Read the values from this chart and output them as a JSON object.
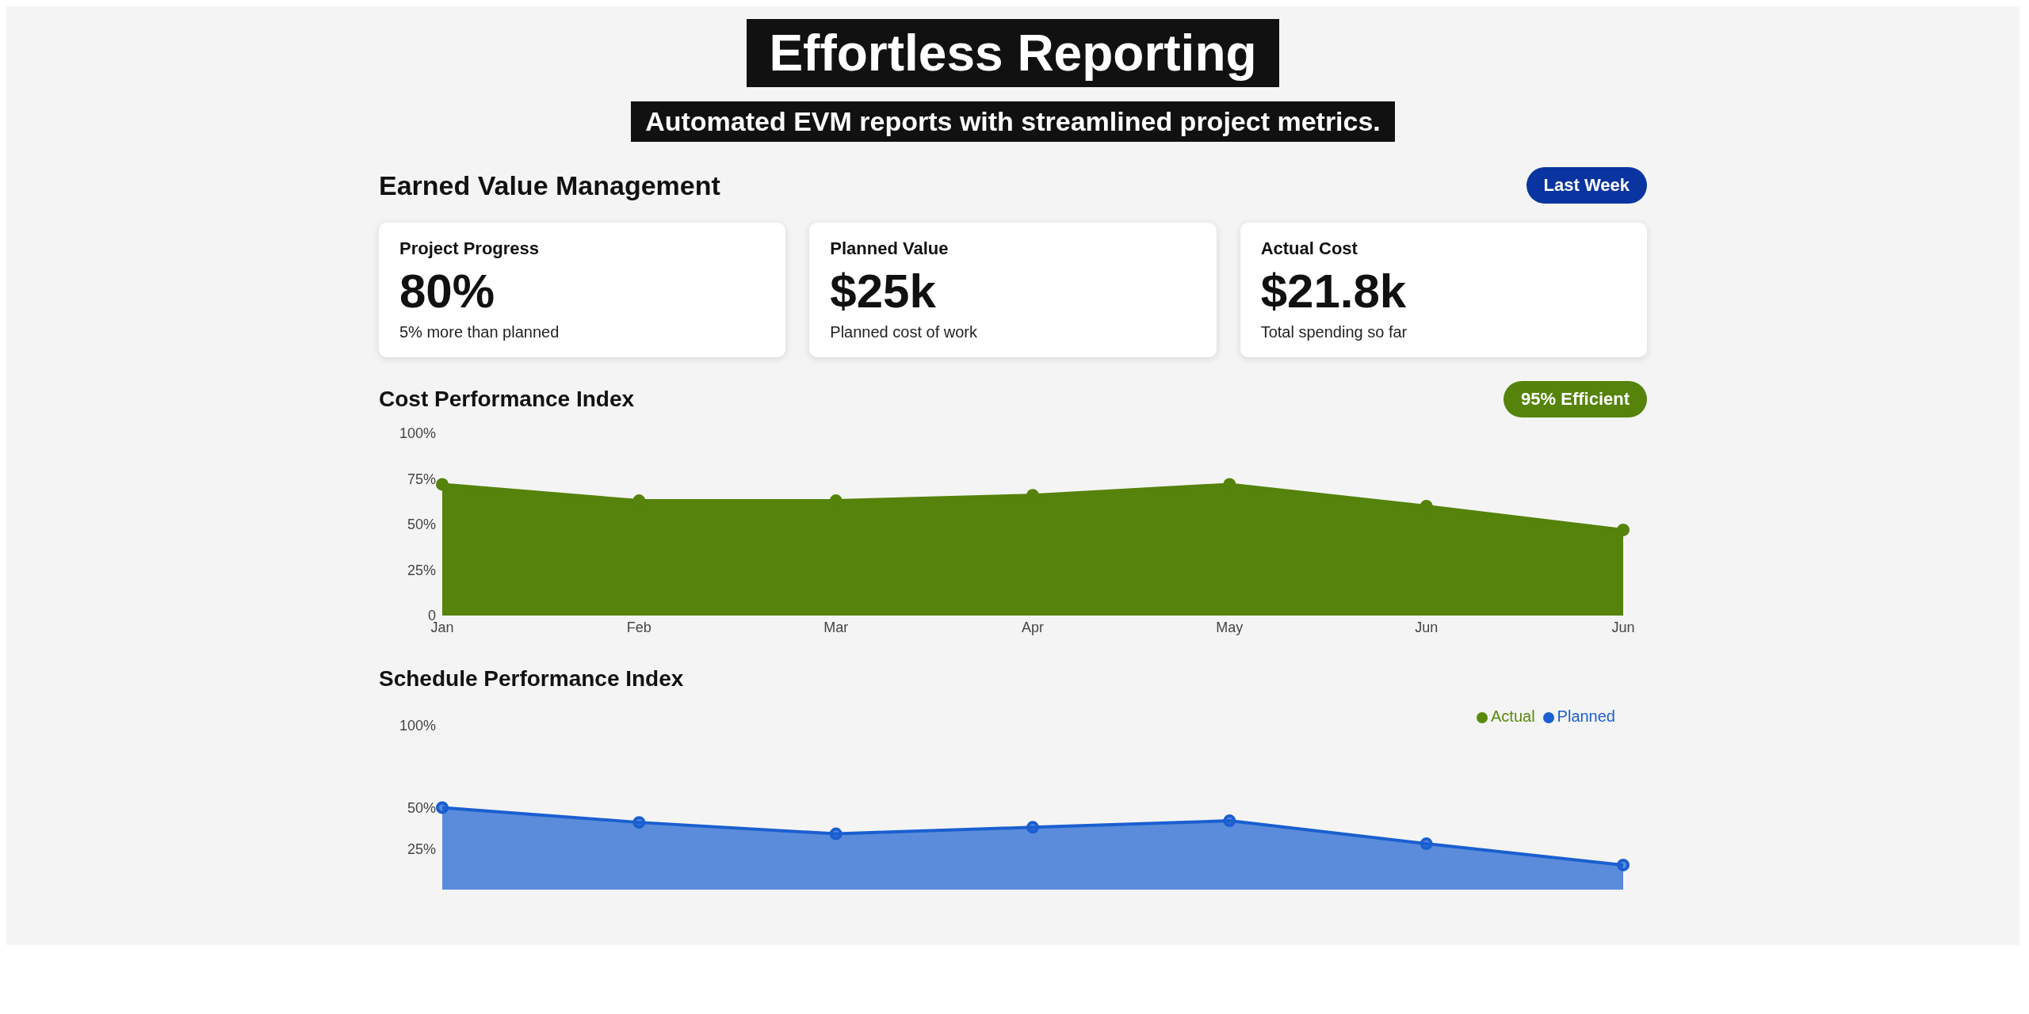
{
  "chart_data": [
    {
      "type": "other",
      "title": "Effortless Reporting",
      "subtitle": "Automated EVM reports with streamlined project metrics."
    },
    {
      "type": "other",
      "title": "Earned Value Management",
      "annotations": [
        "Last Week",
        "Project Progress",
        "80%",
        "5% more than planned",
        "Planned Value",
        "$25k",
        "Planned cost of work",
        "Actual Cost",
        "$21.8k",
        "Total spending so far"
      ]
    },
    {
      "type": "area",
      "title": "Cost Performance Index",
      "categories": [
        "Jan",
        "Feb",
        "Mar",
        "Apr",
        "May",
        "Jun",
        "Jun"
      ],
      "values": [
        72,
        63,
        63,
        66,
        72,
        60,
        47
      ],
      "color": "#55830b",
      "ylim": [
        0,
        100
      ],
      "yticks": [
        0,
        {
          "value": 25,
          "label": "25%"
        },
        {
          "value": 50,
          "label": "50%"
        },
        {
          "value": 75,
          "label": "75%"
        },
        {
          "value": 100,
          "label": "100%"
        }
      ],
      "marker": "circle",
      "annotations": [
        "95% Efficient"
      ]
    },
    {
      "type": "area",
      "title": "Schedule Performance Index",
      "categories": [
        null,
        null,
        null,
        null,
        null,
        null,
        null
      ],
      "series": [
        {
          "name": "Planned",
          "color": "#1a5fd0",
          "values": [
            50,
            41,
            34,
            38,
            42,
            28,
            15
          ]
        },
        {
          "name": "Actual",
          "color": "#5a8a0c",
          "values": [
            null,
            null,
            null,
            null,
            null,
            null,
            null
          ]
        }
      ],
      "ylim": [
        0,
        100
      ],
      "yticks": [
        {
          "value": 25,
          "label": "25%"
        },
        {
          "value": 50,
          "label": "50%"
        },
        {
          "value": 100,
          "label": "100%"
        }
      ],
      "marker": "circle",
      "legend": "top right"
    }
  ]
}
